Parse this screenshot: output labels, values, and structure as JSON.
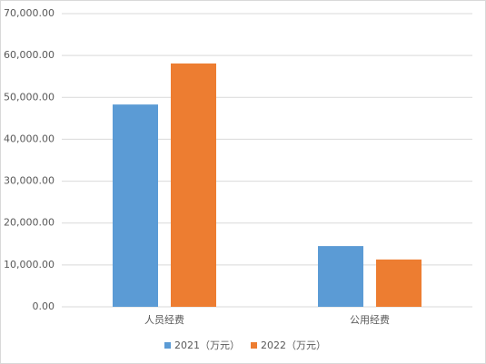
{
  "chart_data": {
    "type": "bar",
    "categories": [
      "人员经费",
      "公用经费"
    ],
    "series": [
      {
        "name": "2021（万元）",
        "color": "#5b9bd5",
        "values": [
          48300,
          14500
        ]
      },
      {
        "name": "2022（万元）",
        "color": "#ed7d31",
        "values": [
          58100,
          11300
        ]
      }
    ],
    "ylim": [
      0,
      70000
    ],
    "yticks": [
      {
        "value": 0,
        "label": "0.00"
      },
      {
        "value": 10000,
        "label": "10,000.00"
      },
      {
        "value": 20000,
        "label": "20,000.00"
      },
      {
        "value": 30000,
        "label": "30,000.00"
      },
      {
        "value": 40000,
        "label": "40,000.00"
      },
      {
        "value": 50000,
        "label": "50,000.00"
      },
      {
        "value": 60000,
        "label": "60,000.00"
      },
      {
        "value": 70000,
        "label": "70,000.00"
      }
    ],
    "grid": true,
    "legend": "bottom"
  }
}
